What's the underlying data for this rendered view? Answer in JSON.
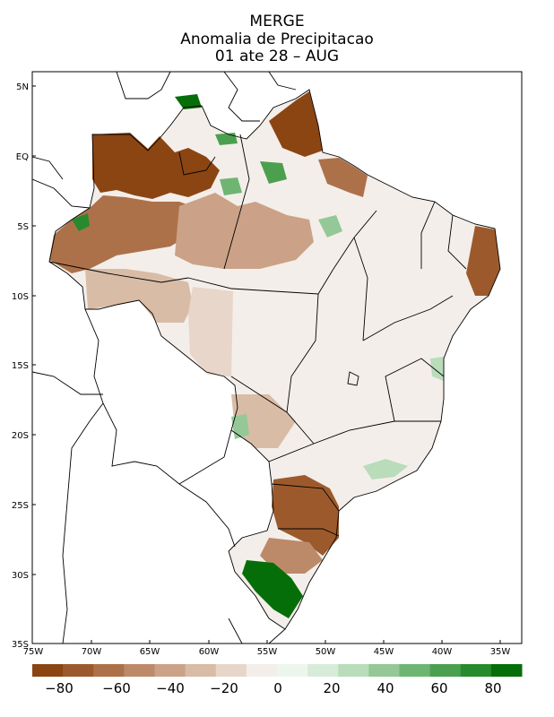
{
  "title": {
    "line1": "MERGE",
    "line2": "Anomalia de Precipitacao",
    "line3": "01 ate 28 – AUG"
  },
  "axes": {
    "lat_labels": [
      "5N",
      "EQ",
      "5S",
      "10S",
      "15S",
      "20S",
      "25S",
      "30S",
      "35S"
    ],
    "lon_labels": [
      "75W",
      "70W",
      "65W",
      "60W",
      "55W",
      "50W",
      "45W",
      "40W",
      "35W"
    ]
  },
  "colorbar": {
    "tick_labels": [
      "−80",
      "−60",
      "−40",
      "−20",
      "0",
      "20",
      "40",
      "60",
      "80"
    ],
    "colors": [
      "#8b4513",
      "#9c5a2c",
      "#ad714a",
      "#bd8a69",
      "#cba287",
      "#d8bca6",
      "#e7d6c9",
      "#f4eeea",
      "#edf6ed",
      "#d7ecd8",
      "#b9dcbb",
      "#94c897",
      "#6fb572",
      "#4ba04f",
      "#278a2c",
      "#056e08"
    ]
  },
  "map": {
    "dry_color": "#8b4513",
    "wet_color": "#056e08",
    "neutral_color": "#f4eeea"
  }
}
